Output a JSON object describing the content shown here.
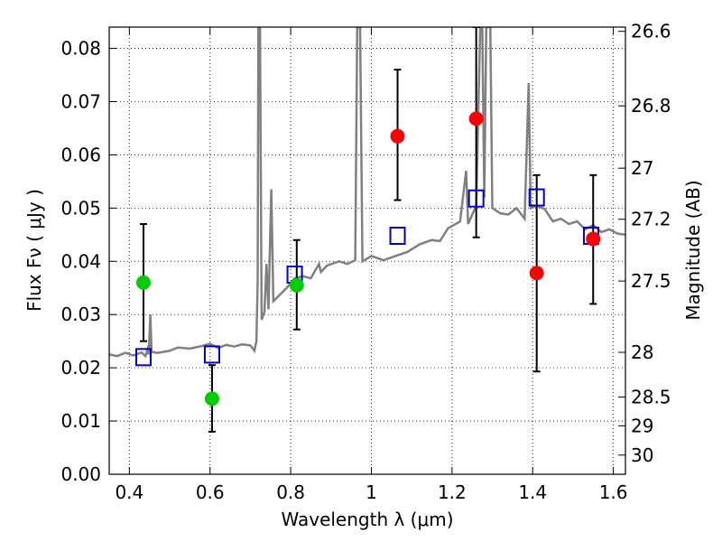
{
  "chart_data": {
    "type": "scatter",
    "xlabel": "Wavelength  λ (μm)",
    "ylabel": "Flux  Fν  ( μJy )",
    "y2label": "Magnitude (AB)",
    "xlim": [
      0.35,
      1.63
    ],
    "ylim": [
      0.0,
      0.084
    ],
    "grid": true,
    "x_ticks": [
      0.4,
      0.6,
      0.8,
      1.0,
      1.2,
      1.4,
      1.6
    ],
    "x_tick_labels": [
      "0.4",
      "0.6",
      "0.8",
      "1",
      "1.2",
      "1.4",
      "1.6"
    ],
    "y_ticks": [
      0.0,
      0.01,
      0.02,
      0.03,
      0.04,
      0.05,
      0.06,
      0.07,
      0.08
    ],
    "y_tick_labels": [
      "0.00",
      "0.01",
      "0.02",
      "0.03",
      "0.04",
      "0.05",
      "0.06",
      "0.07",
      "0.08"
    ],
    "mag_ticks": [
      {
        "flux": 0.0832,
        "label": "26.6"
      },
      {
        "flux": 0.0692,
        "label": "26.8"
      },
      {
        "flux": 0.0575,
        "label": "27"
      },
      {
        "flux": 0.0479,
        "label": "27.2"
      },
      {
        "flux": 0.0363,
        "label": "27.5"
      },
      {
        "flux": 0.0229,
        "label": "28"
      },
      {
        "flux": 0.0145,
        "label": "28.5"
      },
      {
        "flux": 0.0091,
        "label": "29"
      },
      {
        "flux": 0.0036,
        "label": "30"
      }
    ],
    "model_spectrum": {
      "color": "#808080",
      "points": [
        [
          0.35,
          0.0225
        ],
        [
          0.37,
          0.0222
        ],
        [
          0.39,
          0.0228
        ],
        [
          0.41,
          0.0223
        ],
        [
          0.43,
          0.0229
        ],
        [
          0.44,
          0.0222
        ],
        [
          0.445,
          0.0235
        ],
        [
          0.448,
          0.0225
        ],
        [
          0.452,
          0.03
        ],
        [
          0.455,
          0.023
        ],
        [
          0.47,
          0.0228
        ],
        [
          0.5,
          0.0232
        ],
        [
          0.52,
          0.0238
        ],
        [
          0.55,
          0.0236
        ],
        [
          0.58,
          0.0241
        ],
        [
          0.6,
          0.0245
        ],
        [
          0.62,
          0.0237
        ],
        [
          0.64,
          0.0243
        ],
        [
          0.66,
          0.024
        ],
        [
          0.68,
          0.0244
        ],
        [
          0.7,
          0.0242
        ],
        [
          0.71,
          0.0232
        ],
        [
          0.715,
          0.025
        ],
        [
          0.718,
          0.036
        ],
        [
          0.72,
          0.084
        ],
        [
          0.724,
          0.084
        ],
        [
          0.728,
          0.029
        ],
        [
          0.735,
          0.0305
        ],
        [
          0.74,
          0.0395
        ],
        [
          0.745,
          0.031
        ],
        [
          0.752,
          0.0535
        ],
        [
          0.757,
          0.0325
        ],
        [
          0.77,
          0.0335
        ],
        [
          0.79,
          0.035
        ],
        [
          0.81,
          0.0368
        ],
        [
          0.83,
          0.0372
        ],
        [
          0.85,
          0.0368
        ],
        [
          0.87,
          0.0395
        ],
        [
          0.875,
          0.038
        ],
        [
          0.89,
          0.0392
        ],
        [
          0.92,
          0.04
        ],
        [
          0.94,
          0.0395
        ],
        [
          0.96,
          0.0402
        ],
        [
          0.965,
          0.084
        ],
        [
          0.972,
          0.084
        ],
        [
          0.978,
          0.04
        ],
        [
          1.0,
          0.041
        ],
        [
          1.03,
          0.0402
        ],
        [
          1.06,
          0.041
        ],
        [
          1.09,
          0.0418
        ],
        [
          1.12,
          0.0432
        ],
        [
          1.15,
          0.044
        ],
        [
          1.17,
          0.0438
        ],
        [
          1.19,
          0.0462
        ],
        [
          1.22,
          0.0475
        ],
        [
          1.235,
          0.057
        ],
        [
          1.24,
          0.047
        ],
        [
          1.26,
          0.0505
        ],
        [
          1.27,
          0.084
        ],
        [
          1.275,
          0.084
        ],
        [
          1.28,
          0.052
        ],
        [
          1.285,
          0.084
        ],
        [
          1.29,
          0.084
        ],
        [
          1.295,
          0.084
        ],
        [
          1.3,
          0.05
        ],
        [
          1.32,
          0.049
        ],
        [
          1.34,
          0.0488
        ],
        [
          1.36,
          0.05
        ],
        [
          1.38,
          0.048
        ],
        [
          1.39,
          0.0735
        ],
        [
          1.395,
          0.05
        ],
        [
          1.41,
          0.0505
        ],
        [
          1.43,
          0.0498
        ],
        [
          1.45,
          0.0475
        ],
        [
          1.47,
          0.048
        ],
        [
          1.49,
          0.047
        ],
        [
          1.51,
          0.0475
        ],
        [
          1.53,
          0.046
        ],
        [
          1.55,
          0.0468
        ],
        [
          1.57,
          0.0455
        ],
        [
          1.59,
          0.046
        ],
        [
          1.61,
          0.0452
        ],
        [
          1.63,
          0.045
        ]
      ]
    },
    "model_bands": {
      "color": "#0000cc",
      "points": [
        [
          0.435,
          0.022
        ],
        [
          0.605,
          0.0225
        ],
        [
          0.81,
          0.0375
        ],
        [
          1.065,
          0.0448
        ],
        [
          1.26,
          0.0518
        ],
        [
          1.41,
          0.052
        ],
        [
          1.545,
          0.0448
        ]
      ]
    },
    "observed": [
      {
        "x": 0.435,
        "y": 0.036,
        "lo": 0.025,
        "hi": 0.047,
        "color": "#00cc00"
      },
      {
        "x": 0.605,
        "y": 0.0142,
        "lo": 0.008,
        "hi": 0.0205,
        "color": "#00cc00"
      },
      {
        "x": 0.815,
        "y": 0.0355,
        "lo": 0.0272,
        "hi": 0.044,
        "color": "#00cc00"
      },
      {
        "x": 1.065,
        "y": 0.0635,
        "lo": 0.0515,
        "hi": 0.076,
        "color": "#ff0000"
      },
      {
        "x": 1.26,
        "y": 0.0668,
        "lo": 0.0445,
        "hi": 0.084,
        "color": "#ff0000"
      },
      {
        "x": 1.41,
        "y": 0.0378,
        "lo": 0.0193,
        "hi": 0.0562,
        "color": "#ff0000"
      },
      {
        "x": 1.55,
        "y": 0.0442,
        "lo": 0.032,
        "hi": 0.0562,
        "color": "#ff0000"
      }
    ]
  }
}
